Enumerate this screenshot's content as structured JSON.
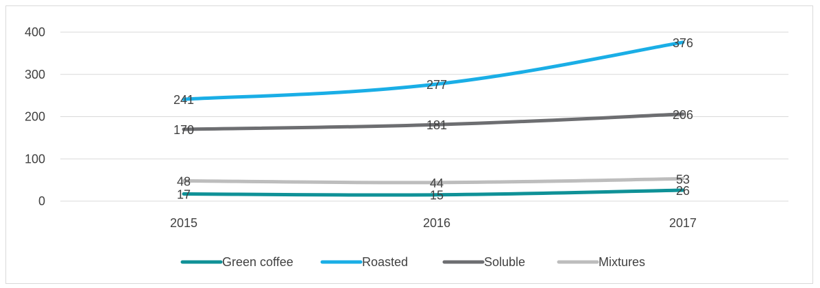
{
  "chart_data": {
    "type": "line",
    "categories": [
      "2015",
      "2016",
      "2017"
    ],
    "series": [
      {
        "name": "Green coffee",
        "values": [
          17,
          15,
          26
        ],
        "color": "#0f9197"
      },
      {
        "name": "Roasted",
        "values": [
          241,
          277,
          376
        ],
        "color": "#1aaee6"
      },
      {
        "name": "Soluble",
        "values": [
          170,
          181,
          206
        ],
        "color": "#6d6e71"
      },
      {
        "name": "Mixtures",
        "values": [
          48,
          44,
          53
        ],
        "color": "#bdbdbd"
      }
    ],
    "title": "",
    "xlabel": "",
    "ylabel": "",
    "ylim": [
      0,
      400
    ],
    "yticks": [
      "0",
      "100",
      "200",
      "300",
      "400"
    ],
    "grid": "horizontal",
    "legend_position": "bottom"
  }
}
